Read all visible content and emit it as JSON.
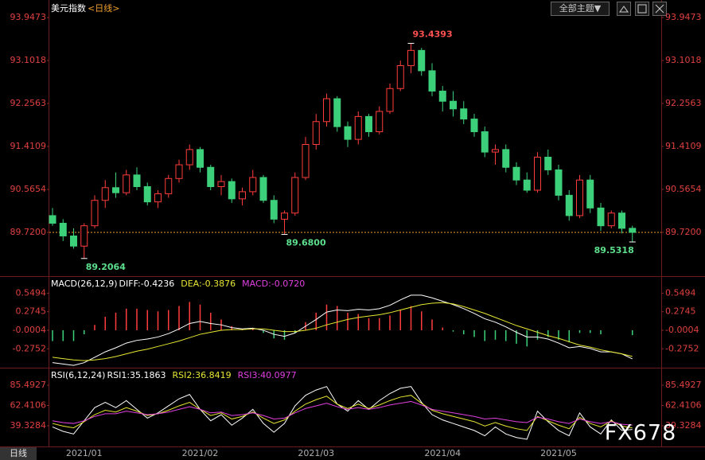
{
  "chart_data": {
    "type": "candlestick",
    "title": "美元指数",
    "period": "<日线>",
    "up_color": "#ff3c3c",
    "down_color": "#3cd07a",
    "ylim": [
      88.89,
      94.057
    ],
    "yticks": [
      93.9473,
      93.1018,
      92.2563,
      91.4109,
      90.5654,
      {
        "value": 89.72,
        "label": "89.7200"
      }
    ],
    "candles": [
      [
        90.05,
        90.2,
        89.85,
        89.9
      ],
      [
        89.9,
        89.98,
        89.55,
        89.65
      ],
      [
        89.65,
        89.8,
        89.4,
        89.45
      ],
      [
        89.45,
        89.9,
        89.2064,
        89.85
      ],
      [
        89.85,
        90.45,
        89.8,
        90.35
      ],
      [
        90.35,
        90.75,
        90.2,
        90.6
      ],
      [
        90.6,
        90.9,
        90.4,
        90.5
      ],
      [
        90.5,
        90.95,
        90.45,
        90.85
      ],
      [
        90.85,
        91.0,
        90.55,
        90.62
      ],
      [
        90.62,
        90.7,
        90.25,
        90.32
      ],
      [
        90.32,
        90.55,
        90.2,
        90.48
      ],
      [
        90.48,
        90.85,
        90.4,
        90.78
      ],
      [
        90.78,
        91.15,
        90.7,
        91.05
      ],
      [
        91.05,
        91.45,
        90.95,
        91.35
      ],
      [
        91.35,
        91.4,
        90.9,
        91.0
      ],
      [
        91.0,
        91.05,
        90.55,
        90.62
      ],
      [
        90.62,
        90.85,
        90.45,
        90.72
      ],
      [
        90.72,
        90.78,
        90.3,
        90.38
      ],
      [
        90.38,
        90.6,
        90.25,
        90.52
      ],
      [
        90.52,
        90.95,
        90.45,
        90.8
      ],
      [
        90.8,
        90.85,
        90.3,
        90.35
      ],
      [
        90.35,
        90.45,
        89.9,
        89.98
      ],
      [
        89.98,
        90.15,
        89.68,
        90.1
      ],
      [
        90.1,
        90.9,
        90.05,
        90.8
      ],
      [
        90.8,
        91.6,
        90.75,
        91.45
      ],
      [
        91.45,
        92.05,
        91.35,
        91.9
      ],
      [
        91.9,
        92.45,
        91.8,
        92.35
      ],
      [
        92.35,
        92.4,
        91.7,
        91.8
      ],
      [
        91.8,
        91.9,
        91.4,
        91.55
      ],
      [
        91.55,
        92.1,
        91.45,
        92.0
      ],
      [
        92.0,
        92.05,
        91.6,
        91.7
      ],
      [
        91.7,
        92.2,
        91.65,
        92.1
      ],
      [
        92.1,
        92.65,
        92.05,
        92.55
      ],
      [
        92.55,
        93.1,
        92.5,
        93.0
      ],
      [
        93.0,
        93.4393,
        92.85,
        93.3
      ],
      [
        93.3,
        93.35,
        92.8,
        92.9
      ],
      [
        92.9,
        93.05,
        92.4,
        92.5
      ],
      [
        92.5,
        92.6,
        92.1,
        92.3
      ],
      [
        92.3,
        92.5,
        92.0,
        92.15
      ],
      [
        92.15,
        92.3,
        91.85,
        91.95
      ],
      [
        91.95,
        92.05,
        91.6,
        91.7
      ],
      [
        91.7,
        91.8,
        91.2,
        91.3
      ],
      [
        91.3,
        91.45,
        91.05,
        91.35
      ],
      [
        91.35,
        91.45,
        90.9,
        91.0
      ],
      [
        91.0,
        91.1,
        90.65,
        90.75
      ],
      [
        90.75,
        90.9,
        90.5,
        90.55
      ],
      [
        90.55,
        91.3,
        90.5,
        91.2
      ],
      [
        91.2,
        91.35,
        90.85,
        90.95
      ],
      [
        90.95,
        91.05,
        90.35,
        90.45
      ],
      [
        90.45,
        90.55,
        89.95,
        90.05
      ],
      [
        90.05,
        90.85,
        90.0,
        90.75
      ],
      [
        90.75,
        90.85,
        90.1,
        90.2
      ],
      [
        90.2,
        90.3,
        89.75,
        89.85
      ],
      [
        89.85,
        90.15,
        89.8,
        90.1
      ],
      [
        90.1,
        90.15,
        89.7,
        89.8
      ],
      [
        89.8,
        89.85,
        89.5318,
        89.72
      ]
    ],
    "annotations": [
      {
        "index": 34,
        "value": 93.4393,
        "color": "#ff5050"
      },
      {
        "index": 3,
        "value": 89.2064,
        "color": "#5ce08c"
      },
      {
        "index": 22,
        "value": 89.68,
        "label": "89.6800",
        "color": "#5ce08c"
      },
      {
        "index": 55,
        "value": 89.5318,
        "color": "#5ce08c"
      }
    ],
    "dates": [
      {
        "index": 3,
        "label": "2021/01"
      },
      {
        "index": 14,
        "label": "2021/02"
      },
      {
        "index": 25,
        "label": "2021/03"
      },
      {
        "index": 37,
        "label": "2021/04"
      },
      {
        "index": 48,
        "label": "2021/05"
      }
    ],
    "macd": {
      "label": "MACD(26,12,9)",
      "items": [
        {
          "text": "DIFF:-0.4236",
          "color": "#ffffff"
        },
        {
          "text": "DEA:-0.3876",
          "color": "#e6e632"
        },
        {
          "text": "MACD:-0.0720",
          "color": "#e040e0"
        }
      ],
      "ylim": [
        -0.5546,
        0.7072
      ],
      "yticks": [
        0.5494,
        0.2745,
        -0.0004,
        -0.2752
      ],
      "series": [
        {
          "name": "DIFF",
          "color": "#ffffff",
          "values": [
            -0.48,
            -0.5,
            -0.52,
            -0.48,
            -0.4,
            -0.32,
            -0.26,
            -0.19,
            -0.15,
            -0.13,
            -0.1,
            -0.05,
            0.02,
            0.1,
            0.13,
            0.1,
            0.08,
            0.04,
            0.02,
            0.03,
            0.0,
            -0.06,
            -0.09,
            -0.04,
            0.06,
            0.16,
            0.27,
            0.3,
            0.29,
            0.31,
            0.3,
            0.32,
            0.37,
            0.45,
            0.52,
            0.52,
            0.48,
            0.43,
            0.38,
            0.32,
            0.25,
            0.17,
            0.12,
            0.05,
            -0.03,
            -0.1,
            -0.1,
            -0.13,
            -0.19,
            -0.26,
            -0.24,
            -0.27,
            -0.32,
            -0.32,
            -0.35,
            -0.4236
          ]
        },
        {
          "name": "DEA",
          "color": "#e6e632",
          "values": [
            -0.4,
            -0.42,
            -0.44,
            -0.45,
            -0.44,
            -0.42,
            -0.39,
            -0.35,
            -0.31,
            -0.28,
            -0.24,
            -0.2,
            -0.16,
            -0.11,
            -0.06,
            -0.03,
            0.0,
            0.01,
            0.01,
            0.02,
            0.02,
            0.0,
            -0.02,
            -0.02,
            0.0,
            0.03,
            0.08,
            0.12,
            0.16,
            0.19,
            0.21,
            0.23,
            0.26,
            0.3,
            0.34,
            0.38,
            0.4,
            0.41,
            0.39,
            0.35,
            0.3,
            0.25,
            0.19,
            0.13,
            0.07,
            0.02,
            -0.03,
            -0.08,
            -0.12,
            -0.17,
            -0.22,
            -0.25,
            -0.29,
            -0.32,
            -0.35,
            -0.3876
          ]
        }
      ],
      "histogram": [
        -0.16,
        -0.16,
        -0.16,
        -0.06,
        0.08,
        0.2,
        0.26,
        0.32,
        0.32,
        0.3,
        0.28,
        0.3,
        0.36,
        0.42,
        0.38,
        0.26,
        0.16,
        0.06,
        0.02,
        0.02,
        -0.04,
        -0.12,
        -0.14,
        -0.04,
        0.12,
        0.26,
        0.38,
        0.36,
        0.26,
        0.24,
        0.18,
        0.18,
        0.22,
        0.3,
        0.36,
        0.28,
        0.16,
        0.04,
        -0.02,
        -0.06,
        -0.1,
        -0.16,
        -0.14,
        -0.16,
        -0.2,
        -0.24,
        -0.14,
        -0.1,
        -0.14,
        -0.18,
        -0.04,
        -0.04,
        -0.06,
        0.0,
        0.0,
        -0.072
      ]
    },
    "rsi": {
      "label": "RSI(6,12,24)",
      "items": [
        {
          "text": "RSI1:35.1863",
          "color": "#ffffff"
        },
        {
          "text": "RSI2:36.8419",
          "color": "#e6e632"
        },
        {
          "text": "RSI3:40.0977",
          "color": "#e040e0"
        }
      ],
      "ylim": [
        16.7,
        100
      ],
      "yticks": [
        85.4927,
        62.4106,
        39.3284
      ],
      "series": [
        {
          "name": "RSI1",
          "color": "#ffffff",
          "values": [
            38,
            33,
            30,
            45,
            60,
            66,
            60,
            68,
            58,
            48,
            54,
            62,
            70,
            75,
            58,
            45,
            52,
            40,
            48,
            58,
            42,
            32,
            42,
            62,
            74,
            80,
            84,
            64,
            56,
            68,
            58,
            68,
            76,
            82,
            84,
            66,
            52,
            46,
            42,
            38,
            34,
            28,
            38,
            30,
            26,
            24,
            56,
            44,
            34,
            28,
            54,
            38,
            30,
            46,
            34,
            35.1863
          ]
        },
        {
          "name": "RSI2",
          "color": "#e6e632",
          "values": [
            42,
            39,
            37,
            44,
            52,
            57,
            55,
            60,
            56,
            51,
            53,
            57,
            62,
            66,
            58,
            51,
            54,
            47,
            50,
            55,
            48,
            42,
            46,
            56,
            64,
            69,
            73,
            64,
            59,
            64,
            59,
            63,
            68,
            72,
            74,
            65,
            57,
            53,
            50,
            47,
            44,
            39,
            43,
            39,
            36,
            34,
            50,
            45,
            40,
            36,
            49,
            42,
            38,
            45,
            39,
            36.8419
          ]
        },
        {
          "name": "RSI3",
          "color": "#e040e0",
          "values": [
            45,
            43,
            42,
            45,
            50,
            53,
            53,
            56,
            54,
            52,
            53,
            55,
            58,
            61,
            58,
            54,
            55,
            51,
            52,
            54,
            51,
            47,
            48,
            54,
            59,
            62,
            65,
            61,
            58,
            60,
            58,
            60,
            63,
            65,
            67,
            63,
            58,
            56,
            54,
            52,
            50,
            47,
            48,
            46,
            44,
            43,
            49,
            47,
            44,
            42,
            47,
            44,
            42,
            44,
            41,
            40.0977
          ]
        }
      ]
    }
  },
  "ui": {
    "theme_button": "全部主题▼",
    "tab": "日线",
    "watermark": "FX678"
  }
}
